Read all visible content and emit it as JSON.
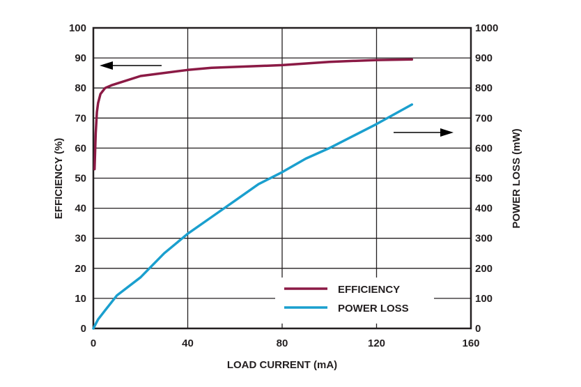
{
  "chart_data": {
    "type": "line",
    "title": "",
    "xlabel": "LOAD CURRENT (mA)",
    "ylabel_left": "EFFICIENCY (%)",
    "ylabel_right": "POWER LOSS (mW)",
    "xlim": [
      0,
      160
    ],
    "ylim_left": [
      0,
      100
    ],
    "ylim_right": [
      0,
      1000
    ],
    "x_ticks": [
      "0",
      "40",
      "80",
      "120",
      "160"
    ],
    "y_ticks_left": [
      "0",
      "10",
      "20",
      "30",
      "40",
      "50",
      "60",
      "70",
      "80",
      "90",
      "100"
    ],
    "y_ticks_right": [
      "0",
      "100",
      "200",
      "300",
      "400",
      "500",
      "600",
      "700",
      "800",
      "900",
      "1000"
    ],
    "grid": true,
    "legend_placement": "bottom-right",
    "series": [
      {
        "name": "EFFICIENCY",
        "axis": "left",
        "color": "#8b1a45",
        "x": [
          0.5,
          1,
          1.5,
          2,
          3,
          5,
          8,
          20,
          40,
          50,
          80,
          100,
          120,
          135
        ],
        "y": [
          53,
          65,
          72,
          75,
          78,
          80,
          81,
          84,
          86,
          86.7,
          87.6,
          88.7,
          89.3,
          89.5
        ]
      },
      {
        "name": "POWER LOSS",
        "axis": "right",
        "color": "#1a9fce",
        "x": [
          0,
          2,
          5,
          10,
          20,
          30,
          40,
          50,
          60,
          70,
          80,
          90,
          100,
          110,
          120,
          135
        ],
        "y": [
          0,
          30,
          60,
          110,
          170,
          250,
          315,
          370,
          425,
          480,
          520,
          565,
          600,
          640,
          680,
          745
        ]
      }
    ]
  }
}
